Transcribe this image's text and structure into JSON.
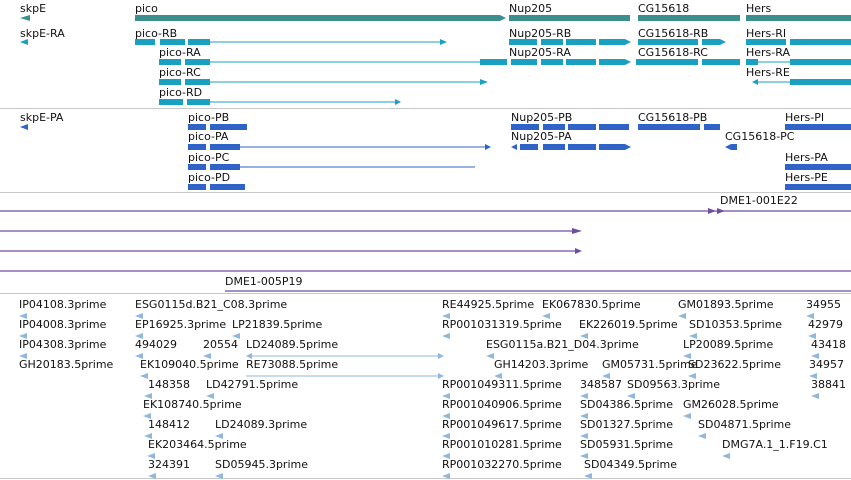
{
  "colors": {
    "gene": "#3c8f8f",
    "transcript_teal": "#1aa0c0",
    "transcript_blue": "#2f63c8",
    "clone": "#6e4ea0",
    "est": "#8fb8dc",
    "separator": "#c8c8c8"
  },
  "genes": [
    "skpE",
    "pico",
    "Nup205",
    "CG15618",
    "Hers"
  ],
  "transcripts_a": [
    "skpE-RA",
    "pico-RB",
    "pico-RA",
    "pico-RC",
    "pico-RD",
    "Nup205-RB",
    "Nup205-RA",
    "CG15618-RB",
    "CG15618-RC",
    "Hers-RI",
    "Hers-RA",
    "Hers-RE"
  ],
  "transcripts_b": [
    "skpE-PA",
    "pico-PB",
    "pico-PA",
    "pico-PC",
    "pico-PD",
    "Nup205-PB",
    "Nup205-PA",
    "CG15618-PB",
    "CG15618-PC",
    "Hers-PI",
    "Hers-PA",
    "Hers-PE"
  ],
  "clones": [
    "DME1-001E22",
    "DME1-005P19"
  ],
  "ests": [
    "IP04108.3prime",
    "IP04008.3prime",
    "IP04308.3prime",
    "GH20183.5prime",
    "ESG0115d.B21_C08.3prime",
    "EP16925.3prime",
    "494029",
    "EK109040.5prime",
    "148358",
    "EK108740.5prime",
    "148412",
    "EK203464.5prime",
    "324391",
    "LP21839.5prime",
    "20554",
    "LD24089.5prime",
    "RE73088.5prime",
    "LD42791.5prime",
    "LD24089.3prime",
    "SD05945.3prime",
    "RE44925.5prime",
    "RP001031319.5prime",
    "RP001049311.5prime",
    "RP001040906.5prime",
    "RP001049617.5prime",
    "RP001010281.5prime",
    "RP001032270.5prime",
    "EK067830.5prime",
    "EK226019.5prime",
    "ESG0115a.B21_D04.3prime",
    "GH14203.3prime",
    "348587",
    "SD04386.5prime",
    "SD01327.5prime",
    "SD05931.5prime",
    "SD04349.5prime",
    "GM05731.5prime",
    "SD09563.3prime",
    "GM01893.5prime",
    "SD10353.5prime",
    "LP20089.5prime",
    "SD23622.5prime",
    "GM26028.5prime",
    "SD04871.5prime",
    "DMG7A.1_1.F19.C1",
    "34955",
    "42979",
    "43418",
    "34957",
    "38841"
  ]
}
